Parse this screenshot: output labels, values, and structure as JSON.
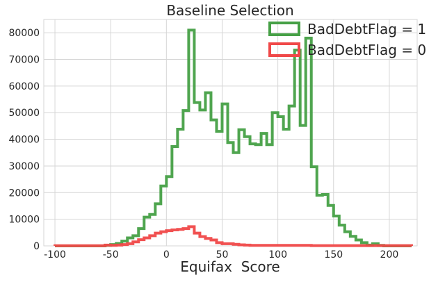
{
  "chart_data": {
    "type": "histogram-step",
    "title": "Baseline Selection",
    "xlabel": "Equifax  Score",
    "ylabel": "",
    "xlim": [
      -110,
      225
    ],
    "ylim": [
      0,
      85000
    ],
    "grid": true,
    "legend_position": "top-right",
    "x_ticks": [
      -100,
      -50,
      0,
      50,
      100,
      150,
      200
    ],
    "y_ticks": [
      0,
      10000,
      20000,
      30000,
      40000,
      50000,
      60000,
      70000,
      80000
    ],
    "bin_edges": [
      -100,
      -95,
      -90,
      -85,
      -80,
      -75,
      -70,
      -65,
      -60,
      -55,
      -50,
      -45,
      -40,
      -35,
      -30,
      -25,
      -20,
      -15,
      -10,
      -5,
      0,
      5,
      10,
      15,
      20,
      25,
      30,
      35,
      40,
      45,
      50,
      55,
      60,
      65,
      70,
      75,
      80,
      85,
      90,
      95,
      100,
      105,
      110,
      115,
      120,
      125,
      130,
      135,
      140,
      145,
      150,
      155,
      160,
      165,
      170,
      175,
      180,
      185,
      190,
      195,
      200,
      205,
      210,
      215,
      220
    ],
    "series": [
      {
        "name": "BadDebtFlag = 1",
        "color": "#46a046",
        "values": [
          0,
          0,
          0,
          0,
          0,
          0,
          0,
          0,
          0,
          200,
          500,
          900,
          1800,
          3000,
          3800,
          6500,
          10800,
          11800,
          15800,
          22500,
          26000,
          37300,
          43800,
          50800,
          81000,
          53800,
          51000,
          57500,
          47300,
          43000,
          53300,
          38800,
          35000,
          43600,
          41000,
          38300,
          38000,
          42200,
          38000,
          50000,
          48500,
          43800,
          52500,
          73500,
          45200,
          78000,
          29700,
          19000,
          19300,
          15200,
          11200,
          7800,
          5300,
          3600,
          2200,
          1200,
          300,
          800,
          200,
          0,
          0,
          0,
          0,
          0
        ]
      },
      {
        "name": "BadDebtFlag = 0",
        "color": "#f04848",
        "values": [
          50,
          50,
          50,
          50,
          50,
          50,
          50,
          50,
          50,
          300,
          200,
          300,
          500,
          800,
          1500,
          2300,
          3000,
          3800,
          4800,
          5300,
          5700,
          6000,
          6200,
          6500,
          7200,
          4800,
          3500,
          2800,
          2200,
          1200,
          800,
          800,
          600,
          400,
          300,
          200,
          200,
          200,
          200,
          200,
          200,
          200,
          200,
          200,
          200,
          200,
          100,
          100,
          100,
          100,
          100,
          100,
          100,
          100,
          100,
          100,
          100,
          100,
          100,
          100,
          100,
          100,
          100,
          100
        ]
      }
    ]
  }
}
